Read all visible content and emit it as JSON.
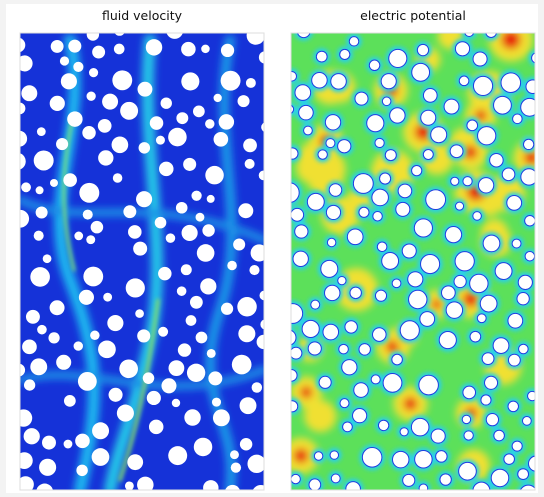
{
  "panels": [
    {
      "title": "fluid velocity"
    },
    {
      "title": "electric potential"
    }
  ]
}
